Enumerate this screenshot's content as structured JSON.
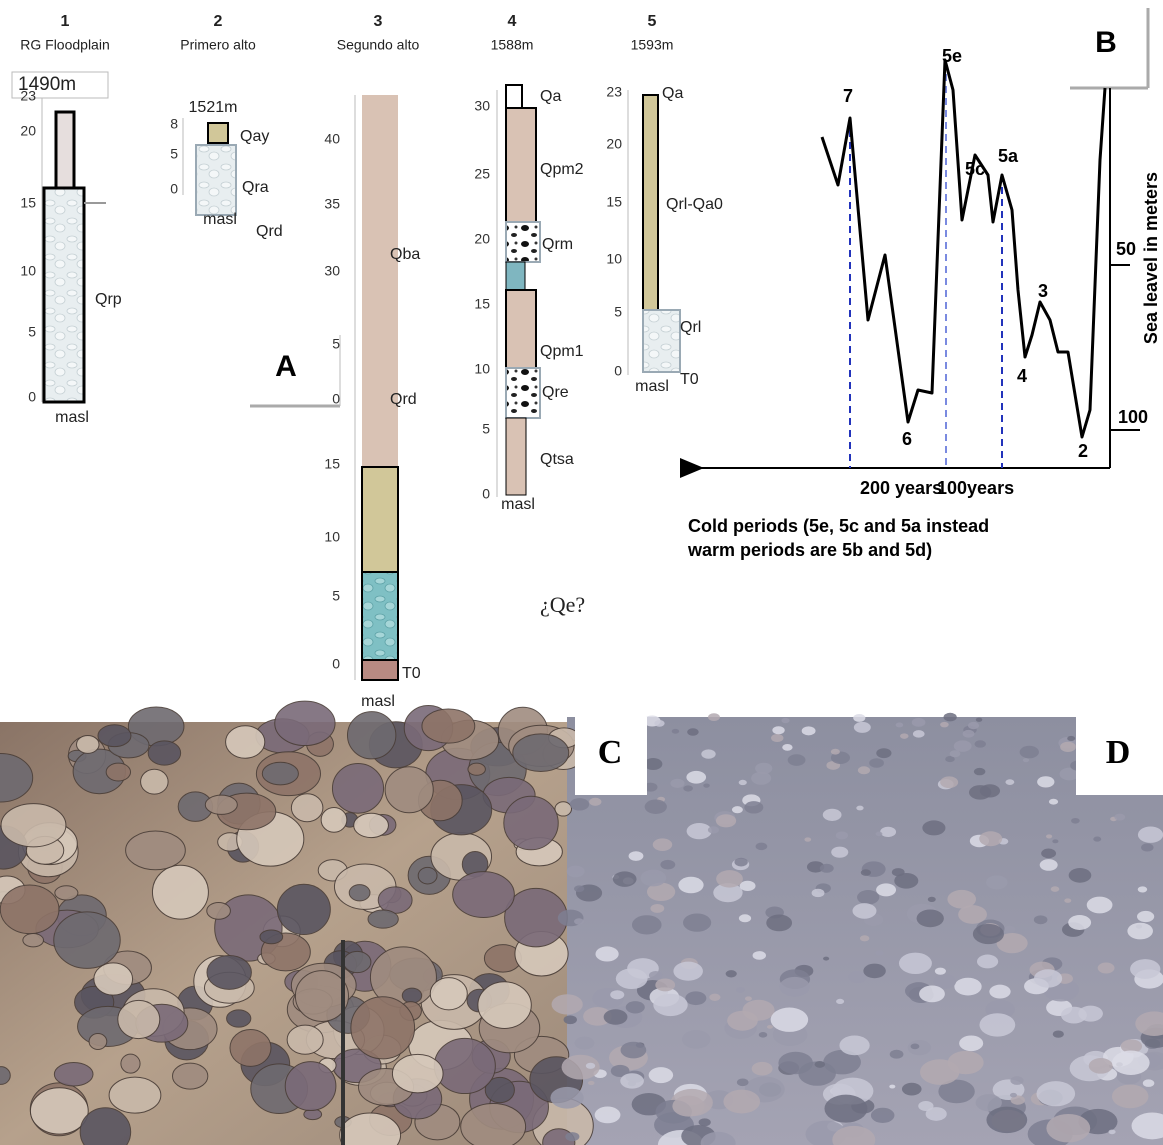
{
  "panels": {
    "a": "A",
    "b": "B",
    "c": "C",
    "d": "D"
  },
  "columns": [
    {
      "number": "1",
      "name": "RG Floodplain",
      "elevation": "1490m",
      "ticks": [
        "23",
        "20",
        "15",
        "10",
        "5",
        "0"
      ],
      "units": [
        "Qrp"
      ],
      "datum": "masl"
    },
    {
      "number": "2",
      "name": "Primero alto",
      "elevation": "1521m",
      "ticks": [
        "8",
        "5",
        "0"
      ],
      "units": [
        "Qay",
        "Qra",
        "Qrd"
      ],
      "datum": "masl"
    },
    {
      "number": "3",
      "name": "Segundo alto",
      "ticks": [
        "40",
        "35",
        "30",
        "5",
        "0",
        "15",
        "10",
        "5",
        "0"
      ],
      "units": [
        "Qba",
        "Qrd",
        "T0"
      ],
      "datum": "masl"
    },
    {
      "number": "4",
      "name": "1588m",
      "ticks": [
        "30",
        "25",
        "20",
        "15",
        "10",
        "5",
        "0"
      ],
      "units": [
        "Qa",
        "Qpm2",
        "Qrm",
        "Qpm1",
        "Qre",
        "Qtsa"
      ],
      "datum": "masl"
    },
    {
      "number": "5",
      "name": "1593m",
      "ticks": [
        "23",
        "20",
        "15",
        "10",
        "5",
        "0"
      ],
      "units": [
        "Qa",
        "Qrl-Qa0",
        "Qrl",
        "T0"
      ],
      "datum": "masl"
    }
  ],
  "query": "¿Qe?",
  "sea_level": {
    "stage_labels": [
      "7",
      "5e",
      "5c",
      "5a",
      "6",
      "4",
      "3",
      "2"
    ],
    "x_labels": [
      "200 years",
      "100years"
    ],
    "y_labels": [
      "50",
      "100"
    ],
    "axis_title": "Sea leavel in meters",
    "caption": [
      "Cold periods (5e, 5c and 5a instead",
      "warm periods are 5b and 5d)"
    ]
  }
}
